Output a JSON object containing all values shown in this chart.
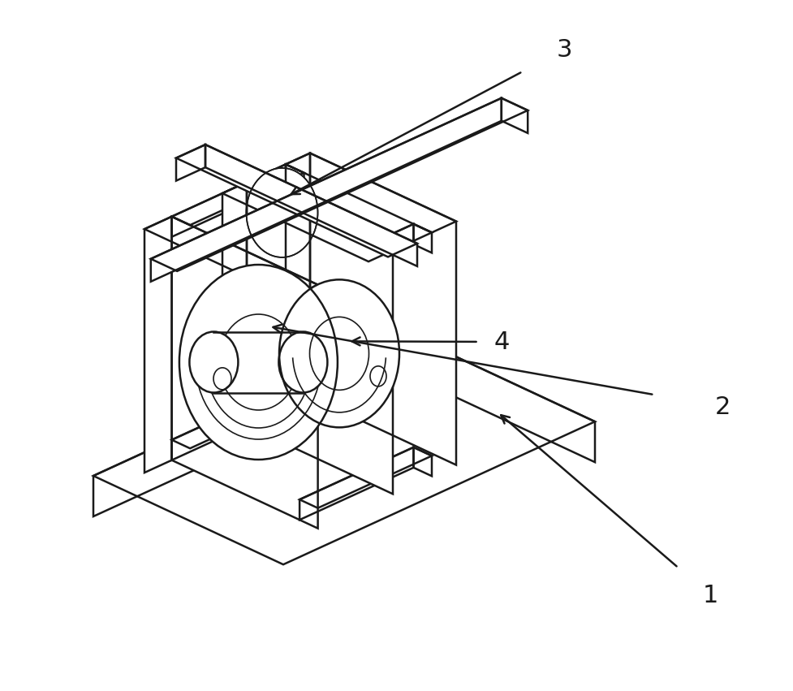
{
  "background_color": "#ffffff",
  "line_color": "#1a1a1a",
  "lw": 1.8,
  "tlw": 1.2,
  "fs": 22,
  "arrow_color": "#1a1a1a"
}
